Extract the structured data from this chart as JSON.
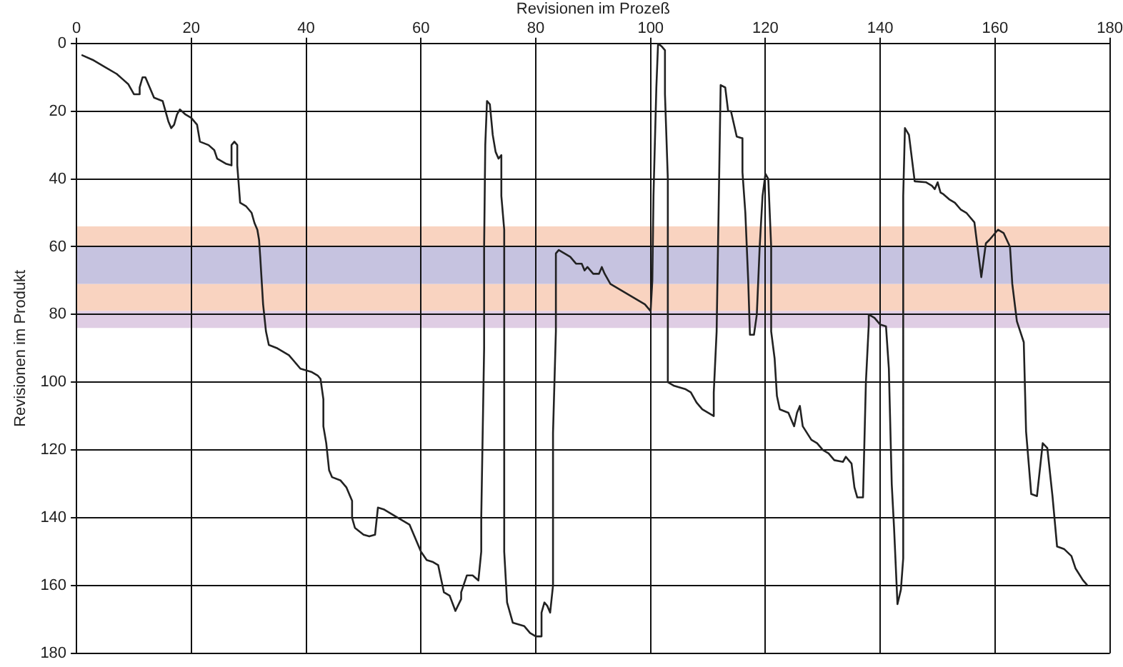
{
  "chart_data": {
    "type": "line",
    "xlabel": "Revisionen im Prozeß",
    "ylabel": "Revisionen im Produkt",
    "xlim": [
      0,
      180
    ],
    "xticks": [
      0,
      20,
      40,
      60,
      80,
      100,
      120,
      140,
      160,
      180
    ],
    "ylim": [
      180,
      0
    ],
    "yticks": [
      0,
      20,
      40,
      60,
      80,
      100,
      120,
      140,
      160,
      180
    ],
    "grid": true,
    "legend": false,
    "marker": "none",
    "line_style": "solid",
    "bands": [
      {
        "axis": "y",
        "from": 54,
        "to": 60,
        "color": "#f9d3c0"
      },
      {
        "axis": "y",
        "from": 60,
        "to": 71,
        "color": "#c6c3e0"
      },
      {
        "axis": "y",
        "from": 71,
        "to": 79,
        "color": "#f9d3c0"
      },
      {
        "axis": "y",
        "from": 79,
        "to": 84,
        "color": "#dfcde4"
      }
    ],
    "series": [
      {
        "color": "#222222",
        "x": [
          1,
          3,
          5,
          7,
          8,
          9,
          10,
          11,
          11,
          11.5,
          12,
          12.5,
          13.5,
          15,
          15.5,
          16,
          16.5,
          17,
          17.5,
          18,
          19,
          20,
          21,
          21.5,
          23,
          24,
          24.5,
          26,
          27,
          27,
          27.5,
          28,
          28,
          28.5,
          29.5,
          30.5,
          31,
          31.5,
          31.8,
          32,
          32.5,
          33,
          33.5,
          35,
          37,
          38,
          39,
          41,
          42,
          42.5,
          43,
          43,
          43.5,
          44,
          44.5,
          46,
          47,
          48,
          48,
          48.5,
          50,
          51,
          52,
          52.5,
          53.5,
          55,
          57,
          58,
          59,
          60,
          61,
          62,
          63,
          64,
          65,
          66,
          67,
          67,
          68,
          69,
          70,
          70.5,
          70.5,
          71,
          71,
          71.2,
          71.5,
          72,
          72.5,
          73,
          73.5,
          74,
          74,
          74.5,
          74.5,
          75,
          76,
          78,
          79,
          80,
          81,
          81,
          81.5,
          82,
          82.5,
          83,
          83,
          83.5,
          83.5,
          84,
          85,
          86,
          87,
          88,
          88.5,
          89,
          90,
          91,
          91.5,
          92,
          93,
          95,
          97,
          99,
          100,
          100.3,
          100.5,
          101,
          101.3,
          102,
          102.5,
          102.5,
          103,
          103,
          104,
          106,
          107,
          108,
          109,
          110,
          111,
          111,
          111.5,
          112.2,
          113,
          113.5,
          114,
          115,
          116,
          116,
          116.5,
          117,
          117.3,
          118,
          118.5,
          119,
          119.5,
          120,
          120.5,
          121,
          121,
          121.6,
          122,
          122.5,
          124,
          124.5,
          125,
          125.5,
          126,
          126.5,
          128,
          129,
          130,
          131,
          132,
          133.5,
          134,
          135,
          135.5,
          136,
          137,
          137.5,
          138,
          138,
          139,
          140,
          141,
          141.5,
          142,
          142.4,
          143,
          143.6,
          144,
          144,
          144.3,
          145,
          146,
          148,
          149,
          149.5,
          150,
          150.5,
          151,
          152,
          153,
          154,
          155,
          156.4,
          157.6,
          158.4,
          159,
          160.5,
          161.5,
          162.6,
          163,
          163.8,
          165,
          165.4,
          166.3,
          167.3,
          168.3,
          169.1,
          170,
          170.8,
          172,
          173.3,
          174,
          175.3,
          176
        ],
        "values": [
          3.5,
          5,
          7,
          9,
          10.5,
          12,
          15,
          15,
          13,
          10,
          10,
          12,
          16,
          17,
          20,
          23,
          25,
          24,
          21,
          19.5,
          21,
          22,
          24,
          29,
          30,
          31.5,
          34,
          35.5,
          36,
          30,
          29,
          30,
          36,
          47,
          48,
          50,
          53,
          55,
          58,
          63,
          77,
          85,
          89,
          90,
          92,
          94,
          96,
          97,
          98,
          99,
          105,
          113,
          118,
          126,
          128,
          129,
          131,
          135,
          140,
          143,
          145,
          145.5,
          145,
          137,
          137.5,
          139,
          141,
          142,
          146,
          150,
          152.5,
          153,
          154,
          162,
          163,
          167.5,
          164,
          162,
          157,
          157,
          158.5,
          150,
          140,
          90,
          60,
          30,
          17,
          18,
          27,
          32,
          34,
          33,
          45,
          55,
          150,
          165,
          171,
          172,
          174,
          175,
          175,
          168,
          165,
          166,
          168,
          160,
          115,
          85,
          62,
          61,
          62,
          63,
          65,
          65,
          67,
          66,
          68,
          68,
          66,
          68,
          71,
          73,
          75,
          77,
          79,
          70,
          45,
          13,
          0,
          1,
          2,
          15,
          40,
          100,
          101,
          102,
          103,
          106,
          108,
          109,
          110,
          103,
          85,
          12.3,
          13,
          20,
          20,
          27.5,
          28,
          38,
          50,
          70,
          86,
          86,
          80,
          60,
          45,
          38.5,
          40,
          60,
          85,
          93,
          104,
          108,
          109,
          111,
          113,
          109,
          107,
          113,
          117,
          118,
          120,
          121,
          123,
          123.5,
          122,
          124,
          131,
          134,
          134,
          100,
          83,
          80,
          81,
          83,
          83.5,
          96,
          130,
          142.8,
          165.5,
          161.2,
          152,
          45,
          25,
          27,
          40.7,
          41,
          42,
          43,
          41,
          44,
          44.5,
          46,
          47,
          49,
          50,
          52.8,
          69,
          59,
          58,
          55,
          56,
          60,
          71,
          82,
          88.2,
          114.5,
          133,
          133.6,
          118,
          119.4,
          133.6,
          148.5,
          149.2,
          151.3,
          154.9,
          158.4,
          159.8
        ]
      }
    ]
  }
}
